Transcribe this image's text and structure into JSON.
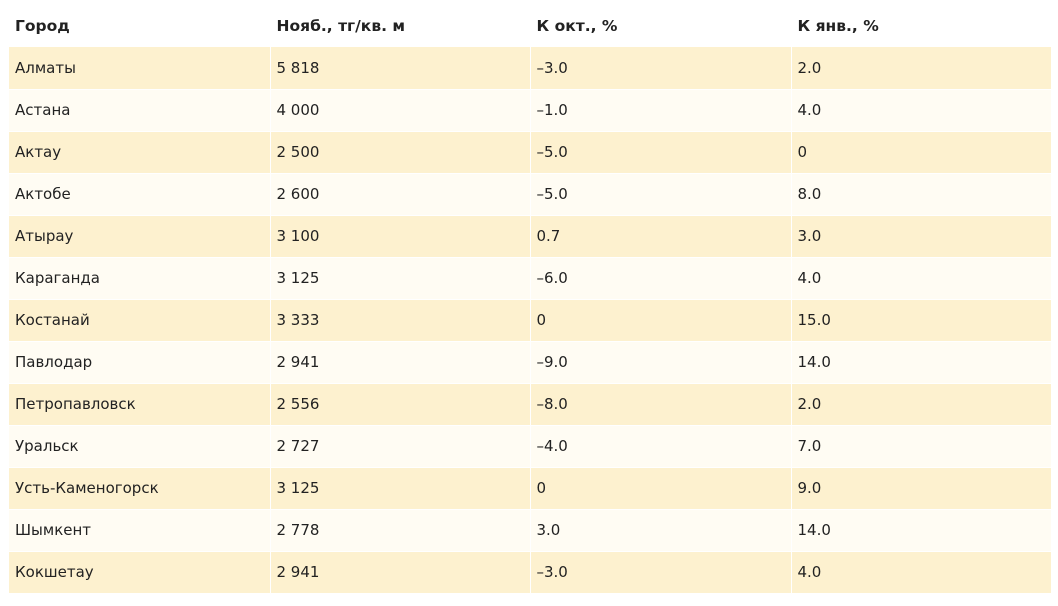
{
  "table": {
    "headers": [
      "Город",
      "Нояб., тг/кв. м",
      "К окт., %",
      "К янв., %"
    ],
    "rows": [
      [
        "Алматы",
        "5 818",
        "–3.0",
        "2.0"
      ],
      [
        "Астана",
        "4 000",
        "–1.0",
        "4.0"
      ],
      [
        "Актау",
        "2 500",
        "–5.0",
        "0"
      ],
      [
        "Актобе",
        "2 600",
        "–5.0",
        "8.0"
      ],
      [
        "Атырау",
        "3 100",
        "0.7",
        "3.0"
      ],
      [
        "Караганда",
        "3 125",
        "–6.0",
        "4.0"
      ],
      [
        "Костанай",
        "3 333",
        "0",
        "15.0"
      ],
      [
        "Павлодар",
        "2 941",
        "–9.0",
        "14.0"
      ],
      [
        "Петропавловск",
        "2 556",
        "–8.0",
        "2.0"
      ],
      [
        "Уральск",
        "2 727",
        "–4.0",
        "7.0"
      ],
      [
        "Усть-Каменогорск",
        "3 125",
        "0",
        "9.0"
      ],
      [
        "Шымкент",
        "2 778",
        "3.0",
        "14.0"
      ],
      [
        "Кокшетау",
        "2 941",
        "–3.0",
        "4.0"
      ]
    ]
  },
  "colors": {
    "row_odd": "#fdf1cf",
    "row_even": "#fffcf3",
    "text": "#222222"
  }
}
